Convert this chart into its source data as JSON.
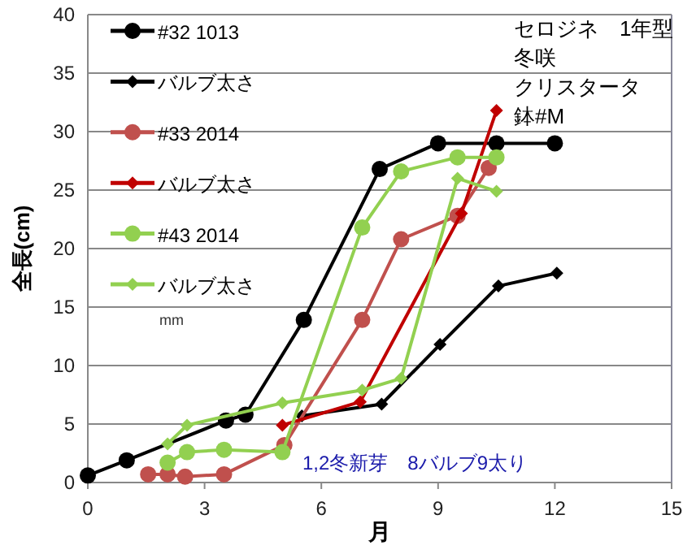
{
  "chart_data": {
    "type": "line",
    "xlabel": "月",
    "ylabel": "全長(cm)",
    "xlim": [
      0,
      15
    ],
    "xticks": [
      0,
      3,
      6,
      9,
      12,
      15
    ],
    "ylim": [
      0,
      40
    ],
    "yticks": [
      0,
      5,
      10,
      15,
      20,
      25,
      30,
      35,
      40
    ],
    "grid": "y",
    "legend": "top left",
    "annotations": [
      "セロジネ　1年型",
      "冬咲",
      "クリスタータ",
      "鉢#M",
      "1,2冬新芽　8バルブ9太り",
      "mm"
    ],
    "series": [
      {
        "name": "#32 1013",
        "color": "#000000",
        "marker": "circle",
        "x": [
          0,
          1,
          3.55,
          4.05,
          5.55,
          7.5,
          9,
          10.5,
          12
        ],
        "values": [
          0.6,
          1.9,
          5.3,
          5.8,
          13.9,
          26.8,
          29,
          29,
          29
        ]
      },
      {
        "name": "バルブ太さ",
        "color": "#000000",
        "marker": "diamond",
        "x": [
          5.5,
          7.55,
          9.05,
          10.55,
          12.05
        ],
        "values": [
          5.7,
          6.7,
          11.8,
          16.8,
          17.9
        ]
      },
      {
        "name": "#33 2014",
        "color": "#c0504d",
        "marker": "circle",
        "x": [
          1.55,
          2.05,
          2.5,
          3.5,
          5.05,
          7.05,
          8.05,
          9.5,
          10.3
        ],
        "values": [
          0.7,
          0.7,
          0.5,
          0.7,
          3.2,
          13.9,
          20.8,
          22.8,
          26.9
        ]
      },
      {
        "name": "バルブ太さ",
        "color": "#c00000",
        "marker": "diamond",
        "x": [
          5,
          7,
          9.6,
          10.5
        ],
        "values": [
          4.9,
          6.9,
          23,
          31.8
        ]
      },
      {
        "name": "#43 2014",
        "color": "#92d050",
        "marker": "circle",
        "x": [
          2.05,
          2.55,
          3.5,
          5,
          7.05,
          8.05,
          9.5,
          10.5
        ],
        "values": [
          1.7,
          2.6,
          2.8,
          2.6,
          21.8,
          26.6,
          27.8,
          27.8
        ]
      },
      {
        "name": "バルブ太さ",
        "color": "#92d050",
        "marker": "diamond",
        "x": [
          2.05,
          2.55,
          5,
          7.05,
          8.05,
          9.5,
          10.5
        ],
        "values": [
          3.3,
          4.9,
          6.8,
          7.9,
          8.9,
          26,
          24.9
        ]
      }
    ]
  }
}
